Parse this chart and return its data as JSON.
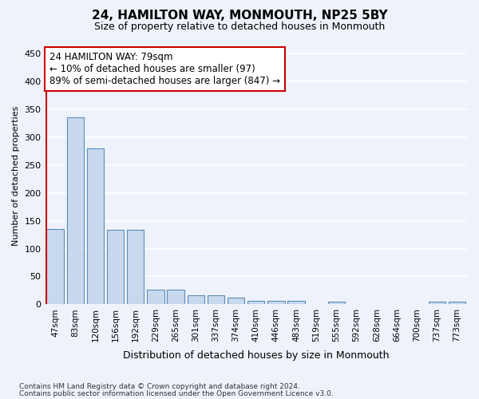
{
  "title": "24, HAMILTON WAY, MONMOUTH, NP25 5BY",
  "subtitle": "Size of property relative to detached houses in Monmouth",
  "xlabel": "Distribution of detached houses by size in Monmouth",
  "ylabel": "Number of detached properties",
  "categories": [
    "47sqm",
    "83sqm",
    "120sqm",
    "156sqm",
    "192sqm",
    "229sqm",
    "265sqm",
    "301sqm",
    "337sqm",
    "374sqm",
    "410sqm",
    "446sqm",
    "483sqm",
    "519sqm",
    "555sqm",
    "592sqm",
    "628sqm",
    "664sqm",
    "700sqm",
    "737sqm",
    "773sqm"
  ],
  "values": [
    135,
    335,
    280,
    133,
    133,
    27,
    27,
    17,
    17,
    12,
    7,
    6,
    6,
    0,
    5,
    0,
    0,
    0,
    0,
    5,
    5
  ],
  "bar_color": "#c9d9ed",
  "bar_edge_color": "#5b8db8",
  "annotation_title": "24 HAMILTON WAY: 79sqm",
  "annotation_line1": "← 10% of detached houses are smaller (97)",
  "annotation_line2": "89% of semi-detached houses are larger (847) →",
  "ylim": [
    0,
    460
  ],
  "annotation_box_color": "#ffffff",
  "annotation_box_edge": "#cc0000",
  "property_line_color": "#cc0000",
  "footer_line1": "Contains HM Land Registry data © Crown copyright and database right 2024.",
  "footer_line2": "Contains public sector information licensed under the Open Government Licence v3.0.",
  "background_color": "#eef2fb",
  "grid_color": "#ffffff"
}
